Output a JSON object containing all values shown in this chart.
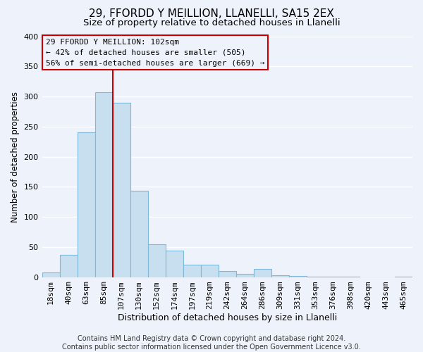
{
  "title": "29, FFORDD Y MEILLION, LLANELLI, SA15 2EX",
  "subtitle": "Size of property relative to detached houses in Llanelli",
  "xlabel": "Distribution of detached houses by size in Llanelli",
  "ylabel": "Number of detached properties",
  "bar_labels": [
    "18sqm",
    "40sqm",
    "63sqm",
    "85sqm",
    "107sqm",
    "130sqm",
    "152sqm",
    "174sqm",
    "197sqm",
    "219sqm",
    "242sqm",
    "264sqm",
    "286sqm",
    "309sqm",
    "331sqm",
    "353sqm",
    "376sqm",
    "398sqm",
    "420sqm",
    "443sqm",
    "465sqm"
  ],
  "bar_values": [
    8,
    37,
    240,
    307,
    290,
    143,
    55,
    44,
    20,
    20,
    10,
    5,
    13,
    3,
    2,
    1,
    1,
    1,
    0,
    0,
    1
  ],
  "bar_color": "#c8dff0",
  "bar_edge_color": "#7fb8d8",
  "vline_x": 3.5,
  "vline_color": "#cc0000",
  "annotation_line1": "29 FFORDD Y MEILLION: 102sqm",
  "annotation_line2": "← 42% of detached houses are smaller (505)",
  "annotation_line3": "56% of semi-detached houses are larger (669) →",
  "annotation_box_edge_color": "#cc0000",
  "ylim": [
    0,
    400
  ],
  "yticks": [
    0,
    50,
    100,
    150,
    200,
    250,
    300,
    350,
    400
  ],
  "footer_text": "Contains HM Land Registry data © Crown copyright and database right 2024.\nContains public sector information licensed under the Open Government Licence v3.0.",
  "background_color": "#eef2fa",
  "grid_color": "#ffffff",
  "title_fontsize": 11,
  "subtitle_fontsize": 9.5,
  "tick_fontsize": 8,
  "ylabel_fontsize": 8.5,
  "xlabel_fontsize": 9,
  "annotation_fontsize": 8,
  "footer_fontsize": 7
}
